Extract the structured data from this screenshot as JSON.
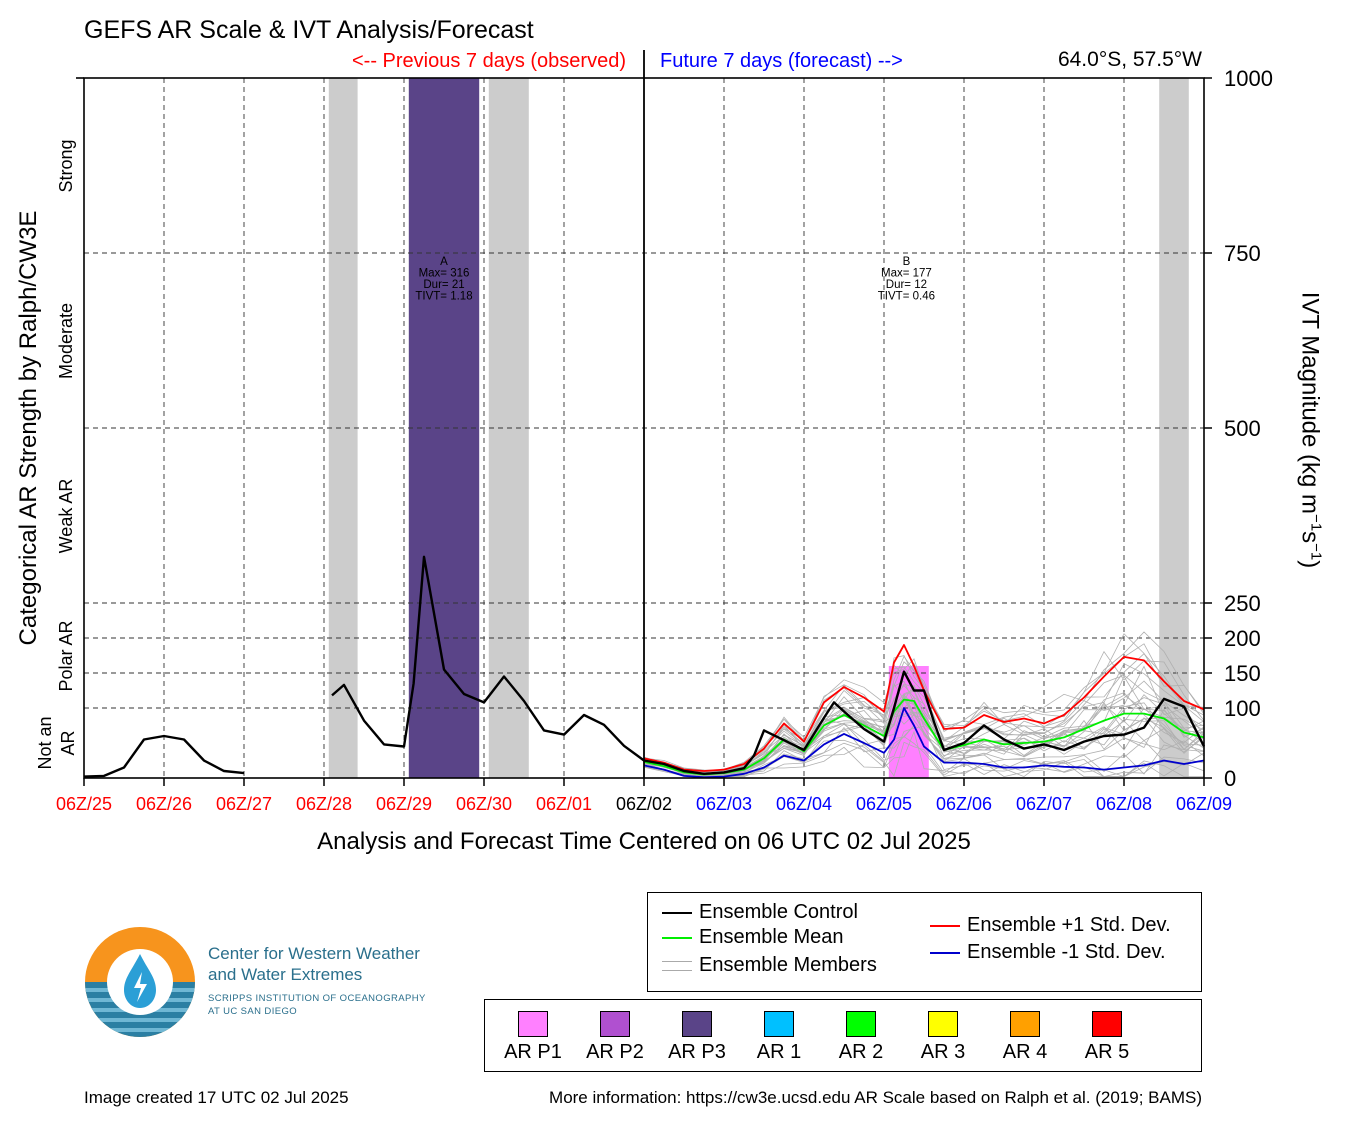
{
  "header": {
    "title": "GEFS AR Scale & IVT Analysis/Forecast",
    "previous_label": "<-- Previous 7 days (observed)",
    "future_label": "Future 7 days (forecast) -->",
    "location": "64.0°S, 57.5°W"
  },
  "axes": {
    "left_label": "Categorical AR Strength by Ralph/CW3E",
    "categories": [
      "Not an AR",
      "Polar AR",
      "Weak AR",
      "Moderate",
      "Strong"
    ],
    "right_label_main": "IVT Magnitude (kg m",
    "right_label_mid": "s",
    "right_label_sup": "−1",
    "x_label": "Analysis and Forecast Time Centered on 06 UTC 02 Jul 2025"
  },
  "legend": {
    "control": "Ensemble Control",
    "mean": "Ensemble Mean",
    "members": "Ensemble Members",
    "plus_std": "Ensemble +1 Std. Dev.",
    "minus_std": "Ensemble -1 Std. Dev."
  },
  "ar_scale": [
    {
      "label": "AR P1",
      "color": "#ff80ff"
    },
    {
      "label": "AR P2",
      "color": "#b050d0"
    },
    {
      "label": "AR P3",
      "color": "#5a4488"
    },
    {
      "label": "AR 1",
      "color": "#00c0ff"
    },
    {
      "label": "AR 2",
      "color": "#00ff00"
    },
    {
      "label": "AR 3",
      "color": "#ffff00"
    },
    {
      "label": "AR 4",
      "color": "#ffa000"
    },
    {
      "label": "AR 5",
      "color": "#ff0000"
    }
  ],
  "logo": {
    "line1": "Center for Western Weather",
    "line2": "and Water Extremes",
    "line3": "SCRIPPS INSTITUTION OF OCEANOGRAPHY",
    "line4": "AT UC SAN DIEGO"
  },
  "footer": {
    "created": "Image created 17 UTC 02 Jul 2025",
    "info": "More information: https://cw3e.ucsd.edu AR Scale based on Ralph et al. (2019; BAMS)"
  },
  "chart_data": {
    "type": "line",
    "x_unit": "days since 06Z/25 Jun 2025",
    "xlim": [
      0,
      14
    ],
    "ylim": [
      0,
      1000
    ],
    "y_ticks": [
      0,
      100,
      150,
      200,
      250,
      500,
      750,
      1000
    ],
    "x_tick_labels": [
      "06Z/25",
      "06Z/26",
      "06Z/27",
      "06Z/28",
      "06Z/29",
      "06Z/30",
      "06Z/01",
      "06Z/02",
      "06Z/03",
      "06Z/04",
      "06Z/05",
      "06Z/06",
      "06Z/07",
      "06Z/08",
      "06Z/09"
    ],
    "x_tick_colors": [
      "#ff0000",
      "#ff0000",
      "#ff0000",
      "#ff0000",
      "#ff0000",
      "#ff0000",
      "#ff0000",
      "#000000",
      "#0000ff",
      "#0000ff",
      "#0000ff",
      "#0000ff",
      "#0000ff",
      "#0000ff",
      "#0000ff"
    ],
    "grid": true,
    "now_x": 7,
    "shading": [
      {
        "x0": 3.06,
        "x1": 3.42,
        "color": "#cccccc"
      },
      {
        "x0": 4.06,
        "x1": 4.94,
        "color": "#5a4488"
      },
      {
        "x0": 5.06,
        "x1": 5.56,
        "color": "#cccccc"
      },
      {
        "x0": 10.06,
        "x1": 10.56,
        "color": "#ff80ff",
        "ymax": 160
      },
      {
        "x0": 13.44,
        "x1": 13.81,
        "color": "#cccccc",
        "ymax": 1000
      }
    ],
    "events": [
      {
        "x": 4.5,
        "lines": [
          "A",
          "Max= 316",
          "Dur= 21",
          "TIVT= 1.18"
        ]
      },
      {
        "x": 10.28,
        "lines": [
          "B",
          "Max= 177",
          "Dur= 12",
          "TIVT= 0.46"
        ]
      }
    ],
    "series": [
      {
        "name": "Ensemble Control",
        "color": "#000000",
        "x": [
          0,
          0.25,
          0.5,
          0.75,
          1,
          1.25,
          1.5,
          1.75,
          2,
          null,
          3.1,
          3.25,
          3.5,
          3.75,
          4,
          4.12,
          4.25,
          4.5,
          4.75,
          5,
          5.25,
          5.5,
          5.75,
          6,
          6.25,
          6.5,
          6.75,
          7,
          7.25,
          7.5,
          7.75,
          8,
          8.25,
          8.375,
          8.5,
          8.75,
          9,
          9.25,
          9.375,
          9.5,
          9.75,
          10,
          10.125,
          10.25,
          10.375,
          10.5,
          10.625,
          10.75,
          11,
          11.25,
          11.5,
          11.75,
          12,
          12.25,
          12.5,
          12.75,
          13,
          13.25,
          13.5,
          13.75,
          14
        ],
        "y": [
          2,
          3,
          15,
          55,
          60,
          55,
          25,
          10,
          7,
          null,
          118,
          133,
          82,
          48,
          45,
          135,
          316,
          155,
          120,
          108,
          145,
          110,
          68,
          62,
          90,
          76,
          46,
          25,
          20,
          10,
          6,
          8,
          14,
          32,
          68,
          54,
          40,
          86,
          108,
          95,
          70,
          52,
          100,
          152,
          125,
          125,
          80,
          40,
          50,
          75,
          55,
          42,
          48,
          40,
          52,
          60,
          62,
          72,
          113,
          102,
          45
        ]
      },
      {
        "name": "Ensemble Mean",
        "color": "#00ee00",
        "x": [
          7,
          7.25,
          7.5,
          7.75,
          8,
          8.25,
          8.5,
          8.75,
          9,
          9.25,
          9.5,
          9.75,
          10,
          10.125,
          10.25,
          10.375,
          10.5,
          10.75,
          11,
          11.25,
          11.5,
          11.75,
          12,
          12.25,
          12.5,
          12.75,
          13,
          13.25,
          13.5,
          13.75,
          14
        ],
        "y": [
          23,
          17,
          8,
          5,
          7,
          12,
          28,
          55,
          38,
          75,
          90,
          75,
          60,
          95,
          112,
          110,
          85,
          40,
          47,
          55,
          48,
          50,
          52,
          58,
          70,
          82,
          92,
          92,
          85,
          65,
          58
        ]
      },
      {
        "name": "Ensemble +1 Std. Dev.",
        "color": "#ff0000",
        "x": [
          7,
          7.25,
          7.5,
          7.75,
          8,
          8.25,
          8.5,
          8.75,
          9,
          9.25,
          9.5,
          9.75,
          10,
          10.125,
          10.25,
          10.375,
          10.5,
          10.75,
          11,
          11.25,
          11.5,
          11.75,
          12,
          12.25,
          12.5,
          12.75,
          13,
          13.25,
          13.5,
          13.75,
          14
        ],
        "y": [
          28,
          22,
          12,
          10,
          12,
          20,
          42,
          78,
          52,
          108,
          130,
          115,
          95,
          165,
          190,
          160,
          125,
          70,
          72,
          90,
          80,
          85,
          78,
          90,
          115,
          145,
          173,
          168,
          138,
          110,
          98
        ]
      },
      {
        "name": "Ensemble -1 Std. Dev.",
        "color": "#0000cc",
        "x": [
          7,
          7.25,
          7.5,
          7.75,
          8,
          8.25,
          8.5,
          8.75,
          9,
          9.25,
          9.5,
          9.75,
          10,
          10.125,
          10.25,
          10.375,
          10.5,
          10.75,
          11,
          11.25,
          11.5,
          11.75,
          12,
          12.25,
          12.5,
          12.75,
          13,
          13.25,
          13.5,
          13.75,
          14
        ],
        "y": [
          18,
          12,
          3,
          1,
          2,
          6,
          15,
          32,
          25,
          48,
          63,
          50,
          36,
          55,
          100,
          75,
          45,
          22,
          22,
          20,
          15,
          15,
          18,
          16,
          15,
          12,
          15,
          18,
          25,
          20,
          25
        ]
      }
    ]
  }
}
